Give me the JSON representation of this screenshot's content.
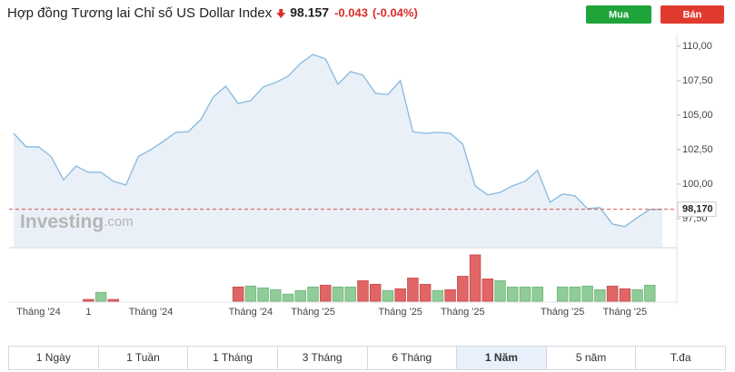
{
  "header": {
    "title": "Hợp đồng Tương lai Chỉ số US Dollar Index",
    "price": "98.157",
    "change": "-0.043",
    "change_pct": "(-0.04%)",
    "buy": "Mua",
    "sell": "Bán"
  },
  "chart_data": [
    {
      "type": "line",
      "color": "#86b8de",
      "fill": "#e9f0f8",
      "categories": [
        null,
        null,
        "Tháng '24",
        null,
        null,
        null,
        "1",
        null,
        null,
        null,
        null,
        "Tháng '24",
        null,
        null,
        null,
        null,
        null,
        null,
        null,
        "Tháng '24",
        null,
        null,
        null,
        null,
        "Tháng '25",
        null,
        null,
        null,
        null,
        null,
        null,
        "Tháng '25",
        null,
        null,
        null,
        null,
        "Tháng '25",
        null,
        null,
        null,
        null,
        null,
        null,
        null,
        "Tháng '25",
        null,
        null,
        null,
        null,
        "Tháng '25",
        null,
        null,
        null
      ],
      "values": [
        103.68,
        102.7,
        102.7,
        102.0,
        100.3,
        101.3,
        100.85,
        100.85,
        100.2,
        99.93,
        102.0,
        102.5,
        103.1,
        103.75,
        103.8,
        104.67,
        106.3,
        107.1,
        105.85,
        106.05,
        107.04,
        107.37,
        107.83,
        108.75,
        109.4,
        109.08,
        107.24,
        108.16,
        107.9,
        106.58,
        106.5,
        107.5,
        103.8,
        103.68,
        103.75,
        103.68,
        102.9,
        99.87,
        99.21,
        99.4,
        99.87,
        100.2,
        100.99,
        98.68,
        99.28,
        99.14,
        98.22,
        98.29,
        97.1,
        96.91,
        97.57,
        98.16,
        98.16
      ],
      "ylim": [
        95.45,
        110.85
      ],
      "yticks": [
        {
          "value": 97.5,
          "label": "97,50"
        },
        {
          "value": 100,
          "label": "100,00"
        },
        {
          "value": 102.5,
          "label": "102,50"
        },
        {
          "value": 105,
          "label": "105,00"
        },
        {
          "value": 107.5,
          "label": "107,50"
        },
        {
          "value": 110,
          "label": "110,00"
        }
      ],
      "last_value": 98.17,
      "last_label": "98,170",
      "watermark": [
        "Investing",
        ".com"
      ]
    },
    {
      "type": "bar",
      "values": [
        null,
        null,
        null,
        null,
        null,
        null,
        2,
        10,
        2,
        null,
        null,
        null,
        null,
        null,
        null,
        null,
        null,
        null,
        16,
        17,
        15,
        13,
        8,
        12,
        16,
        18,
        16,
        16,
        23,
        19,
        12,
        14,
        26,
        19,
        12,
        13,
        28,
        52,
        25,
        23,
        16,
        16,
        16,
        null,
        16,
        16,
        17,
        13,
        17,
        14,
        13,
        18,
        null
      ],
      "colors": [
        null,
        null,
        null,
        null,
        null,
        null,
        "#e06666",
        "#8fcc98",
        "#e06666",
        null,
        null,
        null,
        null,
        null,
        null,
        null,
        null,
        null,
        "#e06666",
        "#8fcc98",
        "#8fcc98",
        "#8fcc98",
        "#8fcc98",
        "#8fcc98",
        "#8fcc98",
        "#e06666",
        "#8fcc98",
        "#8fcc98",
        "#e06666",
        "#e06666",
        "#8fcc98",
        "#e06666",
        "#e06666",
        "#e06666",
        "#8fcc98",
        "#e06666",
        "#e06666",
        "#e06666",
        "#e06666",
        "#8fcc98",
        "#8fcc98",
        "#8fcc98",
        "#8fcc98",
        null,
        "#8fcc98",
        "#8fcc98",
        "#8fcc98",
        "#8fcc98",
        "#e06666",
        "#e06666",
        "#8fcc98",
        "#8fcc98",
        null
      ],
      "ylim": [
        0,
        57
      ]
    }
  ],
  "tabs": [
    "1 Ngày",
    "1 Tuần",
    "1 Tháng",
    "3 Tháng",
    "6 Tháng",
    "1 Năm",
    "5 năm",
    "T.đa"
  ],
  "active_tab": 5
}
